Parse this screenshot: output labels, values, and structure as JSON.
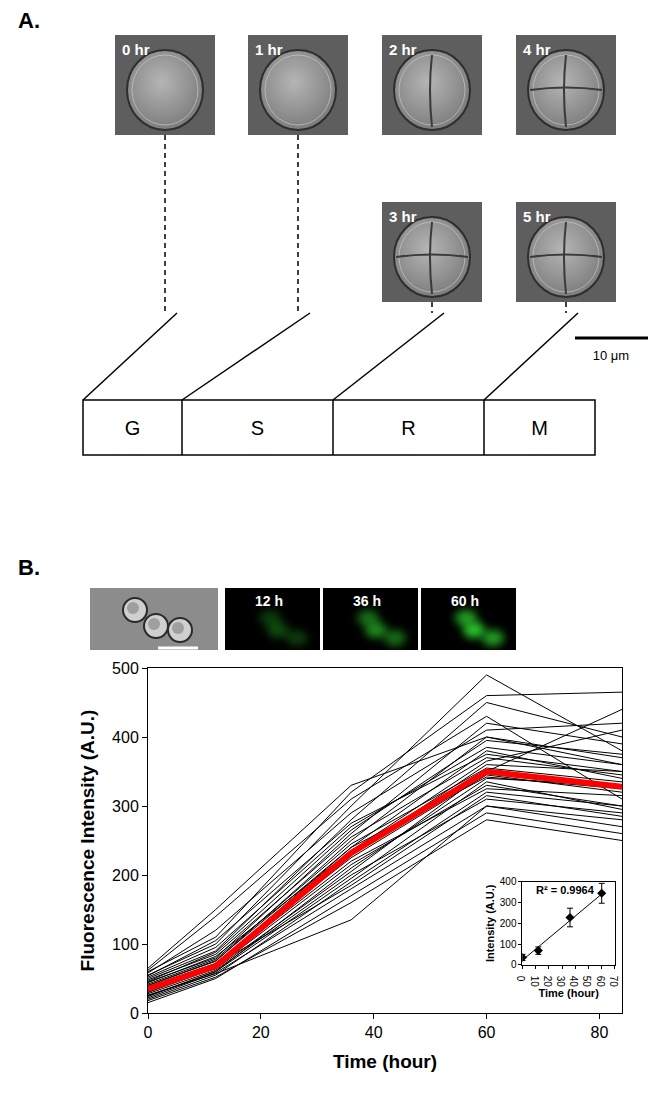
{
  "panel_a": {
    "label": "A.",
    "images": [
      "0 hr",
      "1 hr",
      "2 hr",
      "4 hr",
      "3 hr",
      "5 hr"
    ],
    "scale_bar": "10 μm",
    "phases": [
      "G",
      "S",
      "R",
      "M"
    ]
  },
  "panel_b": {
    "label": "B.",
    "images": [
      "12 h",
      "36 h",
      "60 h"
    ]
  },
  "chart_data": [
    {
      "type": "line",
      "x": [
        0,
        12,
        36,
        60,
        84
      ],
      "xlabel": "Time (hour)",
      "ylabel": "Fluorescence Intensity (A.U.)",
      "xlim": [
        0,
        84
      ],
      "xticks": [
        0,
        20,
        40,
        60,
        80
      ],
      "ylim": [
        0,
        500
      ],
      "yticks": [
        0,
        100,
        200,
        300,
        400,
        500
      ],
      "grid": false,
      "color": "#000000",
      "series": [
        {
          "values": [
            20,
            55,
            190,
            320,
            300
          ]
        },
        {
          "values": [
            25,
            60,
            210,
            340,
            330
          ]
        },
        {
          "values": [
            30,
            65,
            230,
            360,
            350
          ]
        },
        {
          "values": [
            35,
            70,
            240,
            380,
            340
          ]
        },
        {
          "values": [
            40,
            75,
            250,
            400,
            370
          ]
        },
        {
          "values": [
            45,
            80,
            260,
            420,
            390
          ]
        },
        {
          "values": [
            50,
            90,
            280,
            450,
            400
          ]
        },
        {
          "values": [
            55,
            100,
            300,
            490,
            380
          ]
        },
        {
          "values": [
            60,
            110,
            320,
            460,
            465
          ]
        },
        {
          "values": [
            65,
            150,
            330,
            400,
            360
          ]
        },
        {
          "values": [
            15,
            50,
            170,
            290,
            260
          ]
        },
        {
          "values": [
            18,
            52,
            160,
            280,
            250
          ]
        },
        {
          "values": [
            22,
            58,
            180,
            300,
            270
          ]
        },
        {
          "values": [
            28,
            62,
            200,
            310,
            290
          ]
        },
        {
          "values": [
            32,
            66,
            215,
            330,
            300
          ]
        },
        {
          "values": [
            38,
            72,
            225,
            345,
            320
          ]
        },
        {
          "values": [
            42,
            78,
            245,
            355,
            335
          ]
        },
        {
          "values": [
            48,
            85,
            255,
            370,
            345
          ]
        },
        {
          "values": [
            52,
            95,
            270,
            385,
            360
          ]
        },
        {
          "values": [
            58,
            120,
            290,
            410,
            420
          ]
        },
        {
          "values": [
            62,
            140,
            310,
            430,
            310
          ]
        },
        {
          "values": [
            26,
            57,
            135,
            300,
            280
          ]
        },
        {
          "values": [
            34,
            68,
            220,
            325,
            315
          ]
        },
        {
          "values": [
            44,
            82,
            235,
            365,
            410
          ]
        },
        {
          "values": [
            36,
            64,
            205,
            350,
            440
          ]
        },
        {
          "values": [
            24,
            60,
            195,
            335,
            295
          ]
        },
        {
          "values": [
            46,
            88,
            265,
            395,
            375
          ]
        },
        {
          "values": [
            30,
            70,
            185,
            315,
            285
          ]
        },
        {
          "values": [
            40,
            76,
            240,
            342,
            325
          ]
        },
        {
          "values": [
            54,
            105,
            275,
            375,
            350
          ]
        },
        {
          "values": [
            35,
            68,
            232,
            350,
            328
          ],
          "color": "#ff0000"
        }
      ]
    },
    {
      "type": "scatter",
      "x": [
        0,
        12,
        36,
        60
      ],
      "values": [
        35,
        68,
        228,
        345
      ],
      "error": [
        15,
        18,
        45,
        48
      ],
      "marker": "diamond",
      "color": "#000000",
      "trendline": {
        "x": [
          0,
          62
        ],
        "values": [
          22,
          352
        ]
      },
      "annotation": "R² = 0.9964",
      "xlabel": "Time (hour)",
      "ylabel": "Intensity (A.U.)",
      "xlim": [
        0,
        70
      ],
      "xticks": [
        0,
        10,
        20,
        30,
        40,
        50,
        60,
        70
      ],
      "ylim": [
        0,
        400
      ],
      "yticks": [
        0,
        100,
        200,
        300,
        400
      ]
    }
  ]
}
